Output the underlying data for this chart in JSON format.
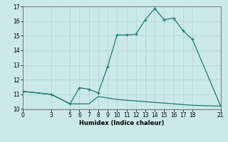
{
  "xlabel": "Humidex (Indice chaleur)",
  "ylabel": "",
  "background_color": "#cce9e9",
  "grid_color": "#b8d8d8",
  "line_color": "#1a7a6e",
  "line1_x": [
    0,
    3,
    5,
    6,
    7,
    8,
    9,
    10,
    11,
    12,
    13,
    14,
    15,
    16,
    17,
    18,
    21
  ],
  "line1_y": [
    11.2,
    11.0,
    10.35,
    11.45,
    11.35,
    11.1,
    12.9,
    15.05,
    15.05,
    15.1,
    16.1,
    16.85,
    16.1,
    16.2,
    15.35,
    14.75,
    10.2
  ],
  "line2_x": [
    0,
    3,
    5,
    6,
    7,
    8,
    9,
    10,
    11,
    12,
    13,
    14,
    15,
    16,
    17,
    18,
    21
  ],
  "line2_y": [
    11.2,
    11.0,
    10.35,
    10.35,
    10.35,
    10.85,
    10.75,
    10.65,
    10.6,
    10.55,
    10.5,
    10.45,
    10.4,
    10.35,
    10.3,
    10.25,
    10.2
  ],
  "xticks": [
    0,
    3,
    5,
    6,
    7,
    8,
    9,
    10,
    11,
    12,
    13,
    14,
    15,
    16,
    17,
    18,
    21
  ],
  "yticks": [
    10,
    11,
    12,
    13,
    14,
    15,
    16,
    17
  ],
  "xlim": [
    0,
    21
  ],
  "ylim": [
    10,
    17
  ]
}
